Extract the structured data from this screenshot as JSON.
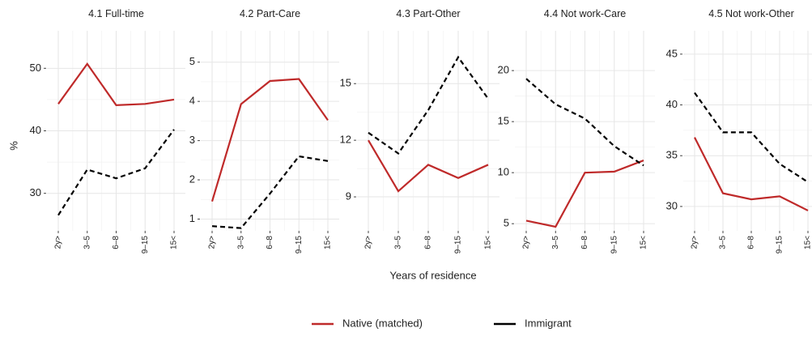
{
  "shared": {
    "x_label": "Years of residence",
    "y_label": "%"
  },
  "chart_data": [
    {
      "type": "line",
      "title": "4.1 Full-time",
      "categories": [
        "2y>",
        "3–5",
        "6–8",
        "9–15",
        "15<"
      ],
      "series": [
        {
          "name": "Native (matched)",
          "color": "#bf2a2a",
          "dash": "solid",
          "values": [
            44.3,
            50.7,
            44.1,
            44.3,
            45.0
          ]
        },
        {
          "name": "Immigrant",
          "color": "#000000",
          "dash": "dashed",
          "values": [
            26.5,
            33.8,
            32.4,
            34.0,
            40.2
          ]
        }
      ],
      "ylim": [
        24,
        56
      ],
      "yticks": [
        30,
        40,
        50
      ],
      "grid": true
    },
    {
      "type": "line",
      "title": "4.2 Part-Care",
      "categories": [
        "2y>",
        "3–5",
        "6–8",
        "9–15",
        "15<"
      ],
      "series": [
        {
          "name": "Native (matched)",
          "color": "#bf2a2a",
          "dash": "solid",
          "values": [
            1.45,
            3.93,
            4.52,
            4.57,
            3.52
          ]
        },
        {
          "name": "Immigrant",
          "color": "#000000",
          "dash": "dashed",
          "values": [
            0.82,
            0.77,
            1.65,
            2.6,
            2.48
          ]
        }
      ],
      "ylim": [
        0.7,
        5.8
      ],
      "yticks": [
        1,
        2,
        3,
        4,
        5
      ],
      "grid": true
    },
    {
      "type": "line",
      "title": "4.3 Part-Other",
      "categories": [
        "2y>",
        "3–5",
        "6–8",
        "9–15",
        "15<"
      ],
      "series": [
        {
          "name": "Native (matched)",
          "color": "#bf2a2a",
          "dash": "solid",
          "values": [
            12.0,
            9.3,
            10.7,
            10.0,
            10.7
          ]
        },
        {
          "name": "Immigrant",
          "color": "#000000",
          "dash": "dashed",
          "values": [
            12.4,
            11.3,
            13.6,
            16.4,
            14.2
          ]
        }
      ],
      "ylim": [
        7.2,
        17.8
      ],
      "yticks": [
        9,
        12,
        15
      ],
      "grid": true
    },
    {
      "type": "line",
      "title": "4.4 Not work-Care",
      "categories": [
        "2y>",
        "3–5",
        "6–8",
        "9–15",
        "15<"
      ],
      "series": [
        {
          "name": "Native (matched)",
          "color": "#bf2a2a",
          "dash": "solid",
          "values": [
            5.3,
            4.7,
            10.0,
            10.1,
            11.2
          ]
        },
        {
          "name": "Immigrant",
          "color": "#000000",
          "dash": "dashed",
          "values": [
            19.2,
            16.7,
            15.3,
            12.6,
            10.7
          ]
        }
      ],
      "ylim": [
        4.3,
        23.9
      ],
      "yticks": [
        5,
        10,
        15,
        20
      ],
      "grid": true
    },
    {
      "type": "line",
      "title": "4.5 Not work-Other",
      "categories": [
        "2y>",
        "3–5",
        "6–8",
        "9–15",
        "15<"
      ],
      "series": [
        {
          "name": "Native (matched)",
          "color": "#bf2a2a",
          "dash": "solid",
          "values": [
            36.8,
            31.3,
            30.7,
            31.0,
            29.6
          ]
        },
        {
          "name": "Immigrant",
          "color": "#000000",
          "dash": "dashed",
          "values": [
            41.2,
            37.3,
            37.3,
            34.2,
            32.4
          ]
        }
      ],
      "ylim": [
        27.6,
        47.3
      ],
      "yticks": [
        30,
        35,
        40,
        45
      ],
      "grid": true
    }
  ]
}
